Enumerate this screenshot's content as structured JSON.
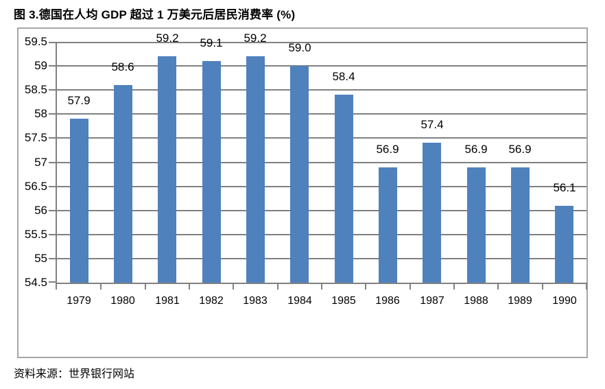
{
  "title": "图 3.德国在人均 GDP 超过 1 万美元后居民消费率 (%)",
  "source": "资料来源：世界银行网站",
  "colors": {
    "bar": "#4F81BD",
    "gridline": "#808080",
    "frame_border": "#A6A6A6",
    "text": "#000000"
  },
  "chart_data": {
    "type": "bar",
    "title": "图 3.德国在人均 GDP 超过 1 万美元后居民消费率 (%)",
    "categories": [
      "1979",
      "1980",
      "1981",
      "1982",
      "1983",
      "1984",
      "1985",
      "1986",
      "1987",
      "1988",
      "1989",
      "1990"
    ],
    "values": [
      57.9,
      58.6,
      59.2,
      59.1,
      59.2,
      59.0,
      58.4,
      56.9,
      57.4,
      56.9,
      56.9,
      56.1
    ],
    "data_labels": [
      "57.9",
      "58.6",
      "59.2",
      "59.1",
      "59.2",
      "59.0",
      "58.4",
      "56.9",
      "57.4",
      "56.9",
      "56.9",
      "56.1"
    ],
    "xlabel": "",
    "ylabel": "",
    "ylim": [
      54.5,
      59.5
    ],
    "ytick_step": 0.5,
    "grid": true,
    "legend": false,
    "source": "资料来源：世界银行网站"
  }
}
